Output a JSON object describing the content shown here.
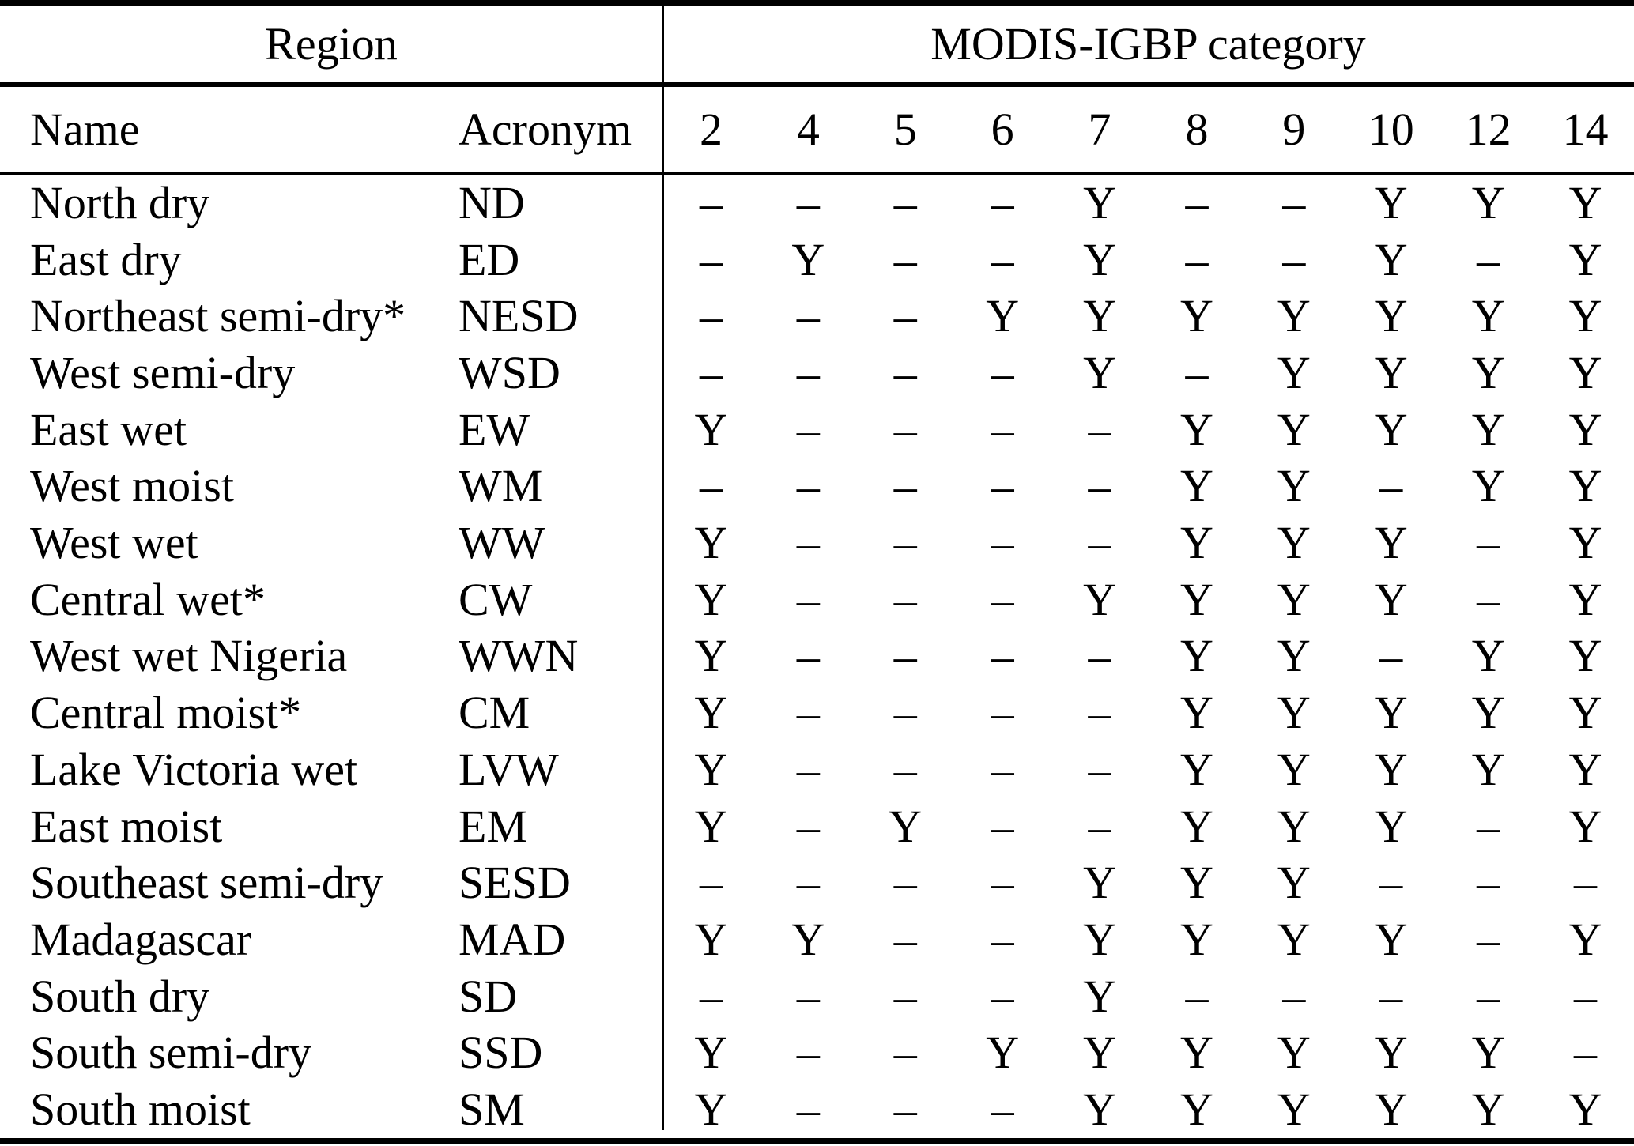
{
  "table": {
    "group_header": {
      "region": "Region",
      "category": "MODIS-IGBP category"
    },
    "column_header": {
      "name": "Name",
      "acronym": "Acronym",
      "categories": [
        "2",
        "4",
        "5",
        "6",
        "7",
        "8",
        "9",
        "10",
        "12",
        "14"
      ]
    },
    "rows": [
      {
        "name": "North dry",
        "acronym": "ND",
        "values": [
          "–",
          "–",
          "–",
          "–",
          "Y",
          "–",
          "–",
          "Y",
          "Y",
          "Y"
        ]
      },
      {
        "name": "East dry",
        "acronym": "ED",
        "values": [
          "–",
          "Y",
          "–",
          "–",
          "Y",
          "–",
          "–",
          "Y",
          "–",
          "Y"
        ]
      },
      {
        "name": "Northeast semi-dry*",
        "acronym": "NESD",
        "values": [
          "–",
          "–",
          "–",
          "Y",
          "Y",
          "Y",
          "Y",
          "Y",
          "Y",
          "Y"
        ]
      },
      {
        "name": "West semi-dry",
        "acronym": "WSD",
        "values": [
          "–",
          "–",
          "–",
          "–",
          "Y",
          "–",
          "Y",
          "Y",
          "Y",
          "Y"
        ]
      },
      {
        "name": "East wet",
        "acronym": "EW",
        "values": [
          "Y",
          "–",
          "–",
          "–",
          "–",
          "Y",
          "Y",
          "Y",
          "Y",
          "Y"
        ]
      },
      {
        "name": "West moist",
        "acronym": "WM",
        "values": [
          "–",
          "–",
          "–",
          "–",
          "–",
          "Y",
          "Y",
          "–",
          "Y",
          "Y"
        ]
      },
      {
        "name": "West wet",
        "acronym": "WW",
        "values": [
          "Y",
          "–",
          "–",
          "–",
          "–",
          "Y",
          "Y",
          "Y",
          "–",
          "Y"
        ]
      },
      {
        "name": "Central wet*",
        "acronym": "CW",
        "values": [
          "Y",
          "–",
          "–",
          "–",
          "Y",
          "Y",
          "Y",
          "Y",
          "–",
          "Y"
        ]
      },
      {
        "name": "West wet Nigeria",
        "acronym": "WWN",
        "values": [
          "Y",
          "–",
          "–",
          "–",
          "–",
          "Y",
          "Y",
          "–",
          "Y",
          "Y"
        ]
      },
      {
        "name": "Central moist*",
        "acronym": "CM",
        "values": [
          "Y",
          "–",
          "–",
          "–",
          "–",
          "Y",
          "Y",
          "Y",
          "Y",
          "Y"
        ]
      },
      {
        "name": "Lake Victoria wet",
        "acronym": "LVW",
        "values": [
          "Y",
          "–",
          "–",
          "–",
          "–",
          "Y",
          "Y",
          "Y",
          "Y",
          "Y"
        ]
      },
      {
        "name": "East moist",
        "acronym": "EM",
        "values": [
          "Y",
          "–",
          "Y",
          "–",
          "–",
          "Y",
          "Y",
          "Y",
          "–",
          "Y"
        ]
      },
      {
        "name": "Southeast semi-dry",
        "acronym": "SESD",
        "values": [
          "–",
          "–",
          "–",
          "–",
          "Y",
          "Y",
          "Y",
          "–",
          "–",
          "–"
        ]
      },
      {
        "name": "Madagascar",
        "acronym": "MAD",
        "values": [
          "Y",
          "Y",
          "–",
          "–",
          "Y",
          "Y",
          "Y",
          "Y",
          "–",
          "Y"
        ]
      },
      {
        "name": "South dry",
        "acronym": "SD",
        "values": [
          "–",
          "–",
          "–",
          "–",
          "Y",
          "–",
          "–",
          "–",
          "–",
          "–"
        ]
      },
      {
        "name": "South semi-dry",
        "acronym": "SSD",
        "values": [
          "Y",
          "–",
          "–",
          "Y",
          "Y",
          "Y",
          "Y",
          "Y",
          "Y",
          "–"
        ]
      },
      {
        "name": "South moist",
        "acronym": "SM",
        "values": [
          "Y",
          "–",
          "–",
          "–",
          "Y",
          "Y",
          "Y",
          "Y",
          "Y",
          "Y"
        ]
      }
    ]
  }
}
